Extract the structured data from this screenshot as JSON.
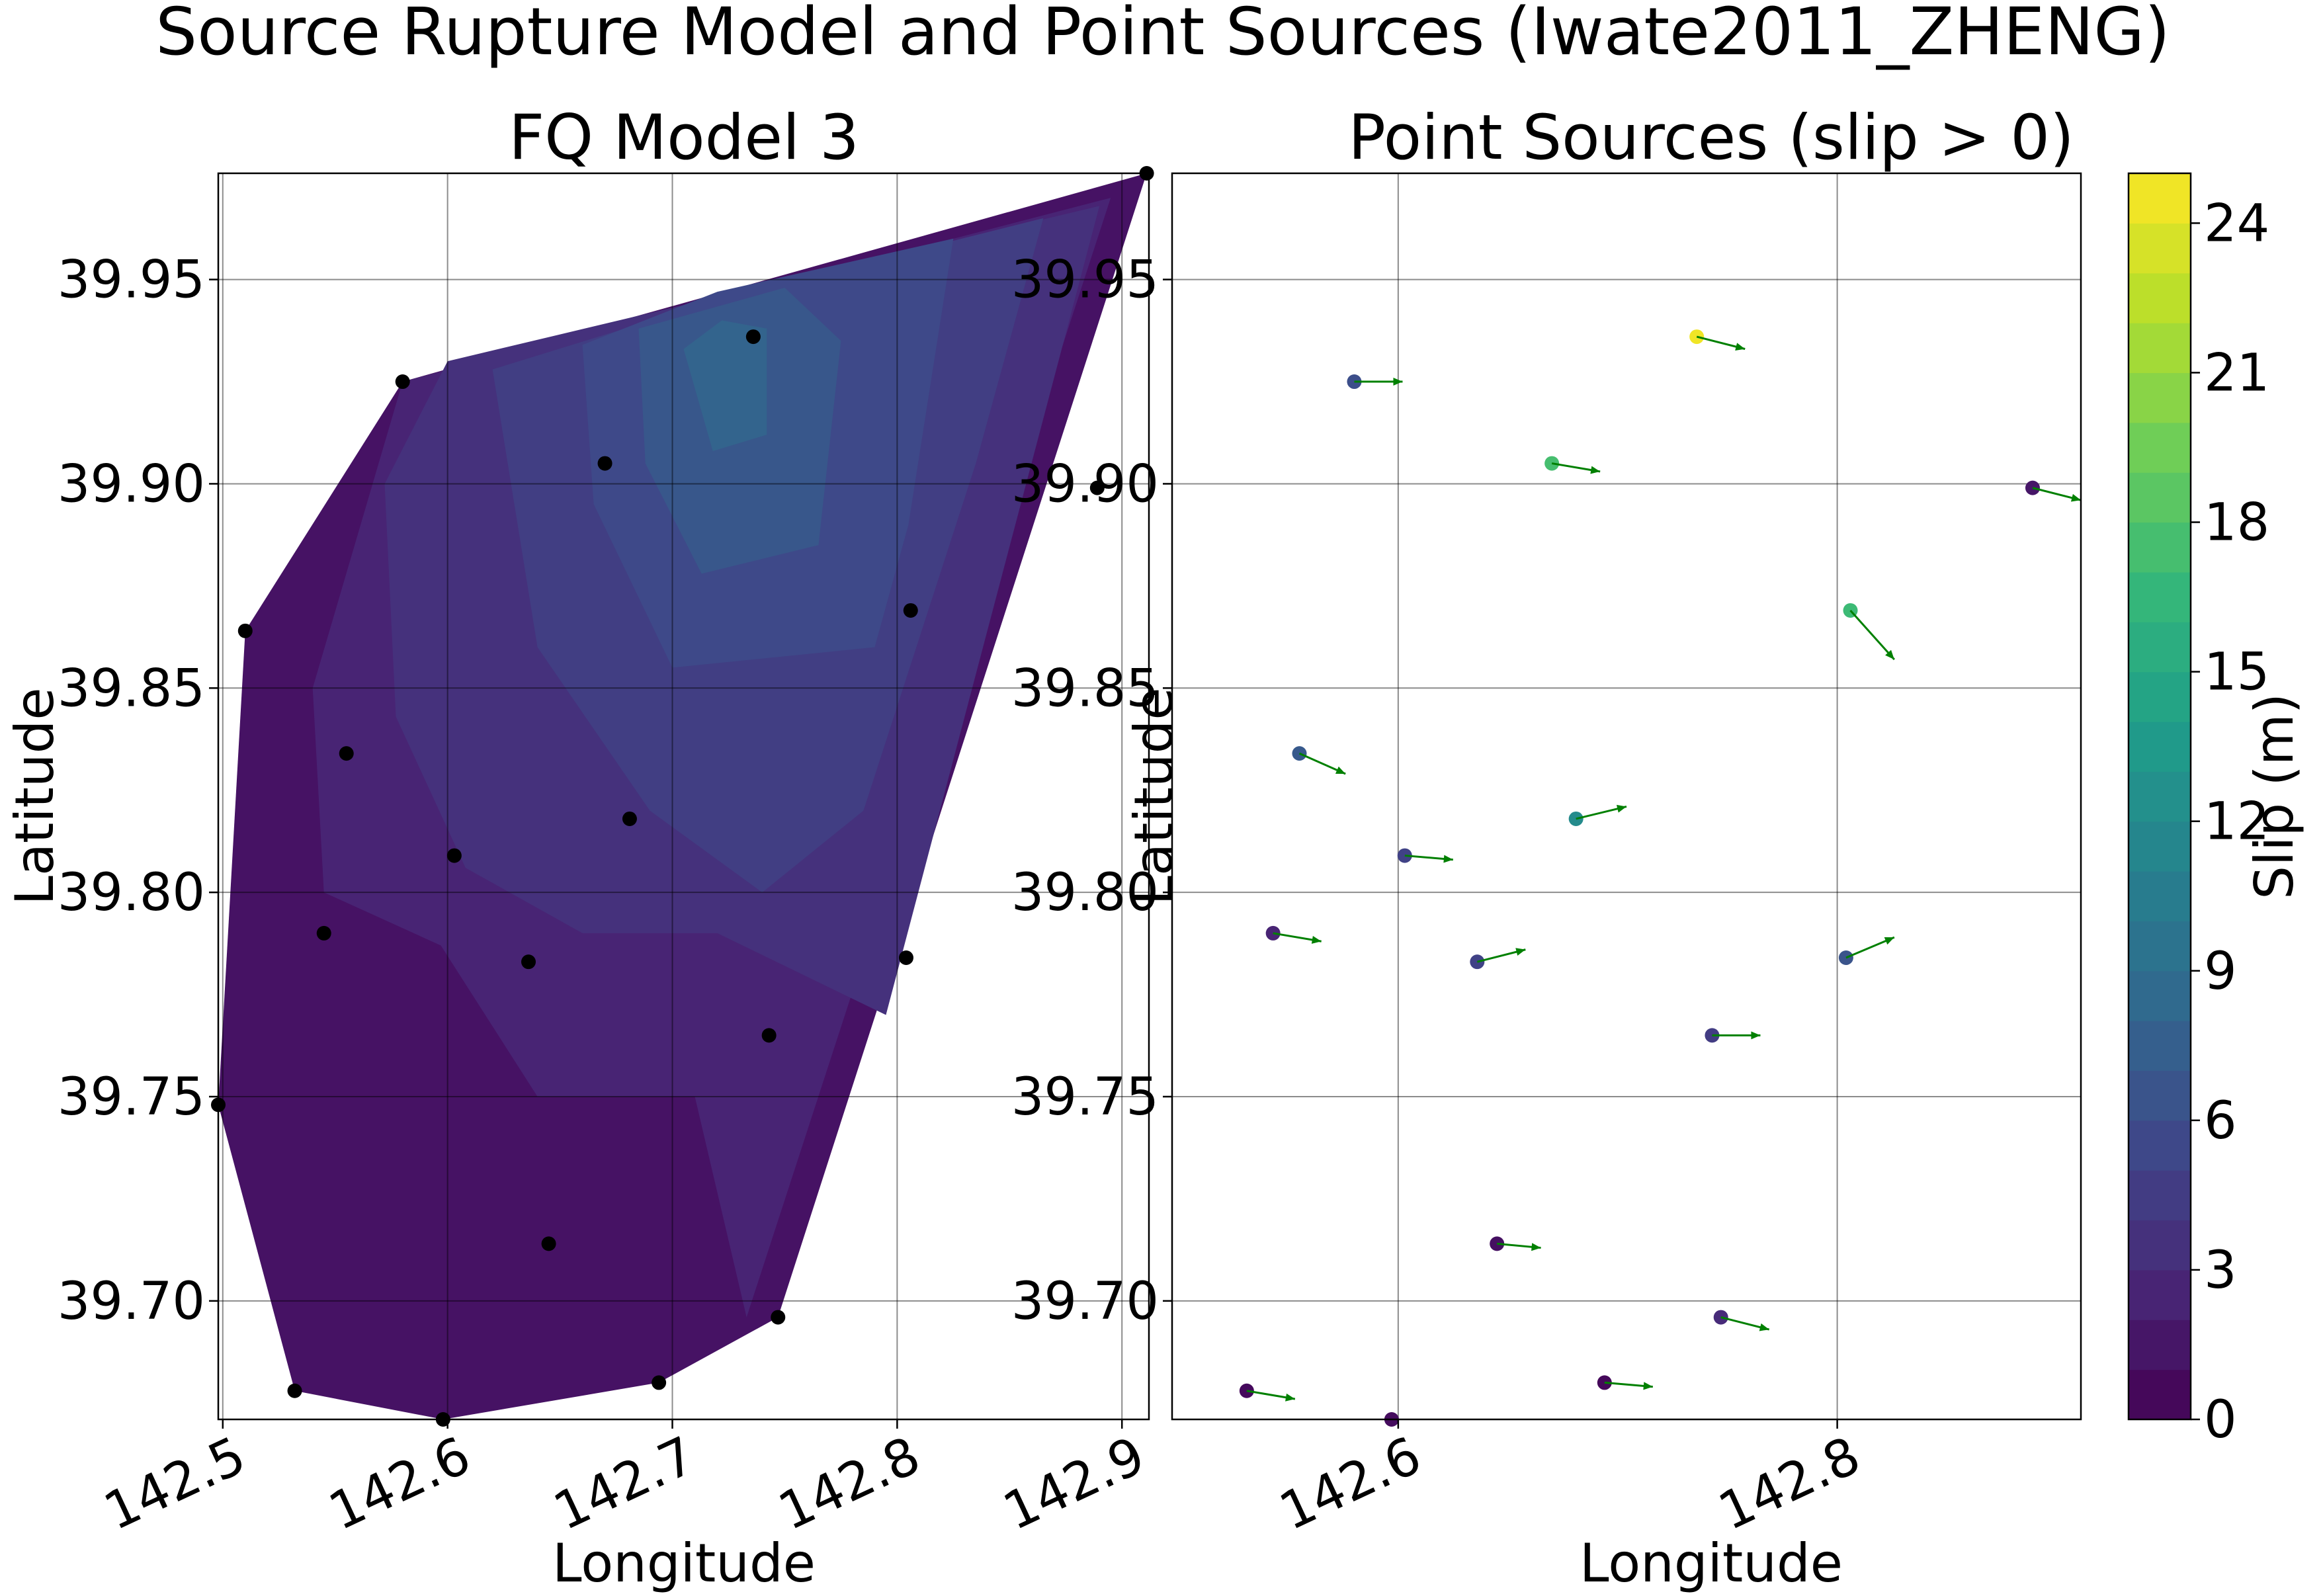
{
  "figure": {
    "title": "Source Rupture Model and Point Sources (Iwate2011_ZHENG)"
  },
  "colors": {
    "viridis_stops": [
      "#440154",
      "#482878",
      "#3e4989",
      "#31688e",
      "#26828e",
      "#1f9e89",
      "#35b779",
      "#6ece58",
      "#b5de2b",
      "#fde725"
    ],
    "marker_black": "#000000",
    "arrow_green": "#008000"
  },
  "chart_data": [
    {
      "type": "contourf",
      "title": "FQ Model 3",
      "xlabel": "Longitude",
      "ylabel": "Latitude",
      "xlim": [
        142.498,
        142.912
      ],
      "ylim": [
        39.671,
        39.976
      ],
      "xticks": [
        "142.5",
        "142.6",
        "142.7",
        "142.8",
        "142.9"
      ],
      "xtick_values": [
        142.5,
        142.6,
        142.7,
        142.8,
        142.9
      ],
      "yticks": [
        "39.70",
        "39.75",
        "39.80",
        "39.85",
        "39.90",
        "39.95"
      ],
      "ytick_values": [
        39.7,
        39.75,
        39.8,
        39.85,
        39.9,
        39.95
      ],
      "grid": true,
      "hull": [
        [
          142.498,
          39.748
        ],
        [
          142.532,
          39.678
        ],
        [
          142.598,
          39.671
        ],
        [
          142.694,
          39.68
        ],
        [
          142.747,
          39.696
        ],
        [
          142.911,
          39.976
        ],
        [
          142.58,
          39.925
        ],
        [
          142.51,
          39.864
        ]
      ],
      "slip_levels": [
        {
          "level": 1.2,
          "polygon": [
            [
              142.498,
              39.748
            ],
            [
              142.532,
              39.678
            ],
            [
              142.598,
              39.671
            ],
            [
              142.694,
              39.68
            ],
            [
              142.747,
              39.696
            ],
            [
              142.911,
              39.976
            ],
            [
              142.58,
              39.925
            ],
            [
              142.51,
              39.864
            ]
          ]
        },
        {
          "level": 2.5,
          "polygon": [
            [
              142.54,
              39.85
            ],
            [
              142.545,
              39.8
            ],
            [
              142.597,
              39.787
            ],
            [
              142.64,
              39.75
            ],
            [
              142.71,
              39.75
            ],
            [
              142.733,
              39.696
            ],
            [
              142.895,
              39.97
            ],
            [
              142.58,
              39.925
            ]
          ]
        },
        {
          "level": 3.5,
          "polygon": [
            [
              142.572,
              39.9
            ],
            [
              142.577,
              39.843
            ],
            [
              142.608,
              39.806
            ],
            [
              142.66,
              39.79
            ],
            [
              142.72,
              39.79
            ],
            [
              142.795,
              39.77
            ],
            [
              142.89,
              39.968
            ],
            [
              142.6,
              39.93
            ]
          ]
        },
        {
          "level": 4.6,
          "polygon": [
            [
              142.62,
              39.928
            ],
            [
              142.64,
              39.86
            ],
            [
              142.69,
              39.82
            ],
            [
              142.74,
              39.8
            ],
            [
              142.785,
              39.82
            ],
            [
              142.835,
              39.905
            ],
            [
              142.865,
              39.965
            ],
            [
              142.72,
              39.945
            ]
          ]
        },
        {
          "level": 5.6,
          "polygon": [
            [
              142.66,
              39.934
            ],
            [
              142.665,
              39.895
            ],
            [
              142.7,
              39.855
            ],
            [
              142.79,
              39.86
            ],
            [
              142.805,
              39.89
            ],
            [
              142.825,
              39.96
            ],
            [
              142.72,
              39.947
            ]
          ]
        },
        {
          "level": 6.8,
          "polygon": [
            [
              142.685,
              39.938
            ],
            [
              142.688,
              39.905
            ],
            [
              142.713,
              39.878
            ],
            [
              142.765,
              39.885
            ],
            [
              142.775,
              39.935
            ],
            [
              142.75,
              39.948
            ]
          ]
        },
        {
          "level": 8.0,
          "polygon": [
            [
              142.705,
              39.933
            ],
            [
              142.718,
              39.908
            ],
            [
              142.742,
              39.912
            ],
            [
              142.742,
              39.938
            ],
            [
              142.722,
              39.94
            ]
          ]
        }
      ],
      "points": [
        {
          "lon": 142.736,
          "lat": 39.936
        },
        {
          "lon": 142.58,
          "lat": 39.925
        },
        {
          "lon": 142.67,
          "lat": 39.905
        },
        {
          "lon": 142.889,
          "lat": 39.899
        },
        {
          "lon": 142.51,
          "lat": 39.864
        },
        {
          "lon": 142.806,
          "lat": 39.869
        },
        {
          "lon": 142.555,
          "lat": 39.834
        },
        {
          "lon": 142.681,
          "lat": 39.818
        },
        {
          "lon": 142.603,
          "lat": 39.809
        },
        {
          "lon": 142.545,
          "lat": 39.79
        },
        {
          "lon": 142.636,
          "lat": 39.783
        },
        {
          "lon": 142.804,
          "lat": 39.784
        },
        {
          "lon": 142.743,
          "lat": 39.765
        },
        {
          "lon": 142.645,
          "lat": 39.714
        },
        {
          "lon": 142.747,
          "lat": 39.696
        },
        {
          "lon": 142.532,
          "lat": 39.678
        },
        {
          "lon": 142.694,
          "lat": 39.68
        },
        {
          "lon": 142.598,
          "lat": 39.671
        },
        {
          "lon": 142.498,
          "lat": 39.748
        },
        {
          "lon": 142.911,
          "lat": 39.976
        }
      ]
    },
    {
      "type": "scatter",
      "title": "Point Sources (slip > 0)",
      "xlabel": "Longitude",
      "ylabel": "Latitude",
      "xlim": [
        142.497,
        142.911
      ],
      "ylim": [
        39.671,
        39.976
      ],
      "xticks": [
        "142.6",
        "142.8"
      ],
      "xtick_values": [
        142.6,
        142.8
      ],
      "yticks": [
        "39.70",
        "39.75",
        "39.80",
        "39.85",
        "39.90",
        "39.95"
      ],
      "ytick_values": [
        39.7,
        39.75,
        39.8,
        39.85,
        39.9,
        39.95
      ],
      "grid": true,
      "points": [
        {
          "lon": 142.736,
          "lat": 39.936,
          "slip": 24.5,
          "dx": 0.022,
          "dy": -0.003
        },
        {
          "lon": 142.58,
          "lat": 39.925,
          "slip": 6.0,
          "dx": 0.022,
          "dy": 0.0
        },
        {
          "lon": 142.67,
          "lat": 39.905,
          "slip": 17.5,
          "dx": 0.022,
          "dy": -0.002
        },
        {
          "lon": 142.889,
          "lat": 39.899,
          "slip": 1.5,
          "dx": 0.022,
          "dy": -0.003
        },
        {
          "lon": 142.806,
          "lat": 39.869,
          "slip": 17.0,
          "dx": 0.02,
          "dy": -0.012
        },
        {
          "lon": 142.555,
          "lat": 39.834,
          "slip": 7.0,
          "dx": 0.021,
          "dy": -0.005
        },
        {
          "lon": 142.681,
          "lat": 39.818,
          "slip": 12.0,
          "dx": 0.023,
          "dy": 0.003
        },
        {
          "lon": 142.603,
          "lat": 39.809,
          "slip": 5.0,
          "dx": 0.022,
          "dy": -0.001
        },
        {
          "lon": 142.543,
          "lat": 39.79,
          "slip": 2.5,
          "dx": 0.022,
          "dy": -0.002
        },
        {
          "lon": 142.636,
          "lat": 39.783,
          "slip": 5.0,
          "dx": 0.022,
          "dy": 0.003
        },
        {
          "lon": 142.804,
          "lat": 39.784,
          "slip": 6.5,
          "dx": 0.022,
          "dy": 0.005
        },
        {
          "lon": 142.743,
          "lat": 39.765,
          "slip": 4.5,
          "dx": 0.022,
          "dy": 0.0
        },
        {
          "lon": 142.645,
          "lat": 39.714,
          "slip": 1.0,
          "dx": 0.02,
          "dy": -0.001
        },
        {
          "lon": 142.747,
          "lat": 39.696,
          "slip": 3.0,
          "dx": 0.022,
          "dy": -0.003
        },
        {
          "lon": 142.531,
          "lat": 39.678,
          "slip": 0.6,
          "dx": 0.022,
          "dy": -0.002
        },
        {
          "lon": 142.694,
          "lat": 39.68,
          "slip": 0.5,
          "dx": 0.022,
          "dy": -0.001
        },
        {
          "lon": 142.597,
          "lat": 39.671,
          "slip": 0.8,
          "dx": 0.0,
          "dy": 0.0
        }
      ]
    },
    {
      "type": "colorbar",
      "label": "Slip (m)",
      "range": [
        0,
        25
      ],
      "ticks": [
        "0",
        "3",
        "6",
        "9",
        "12",
        "15",
        "18",
        "21",
        "24"
      ],
      "tick_values": [
        0,
        3,
        6,
        9,
        12,
        15,
        18,
        21,
        24
      ],
      "levels": 25,
      "colormap": "viridis"
    }
  ]
}
